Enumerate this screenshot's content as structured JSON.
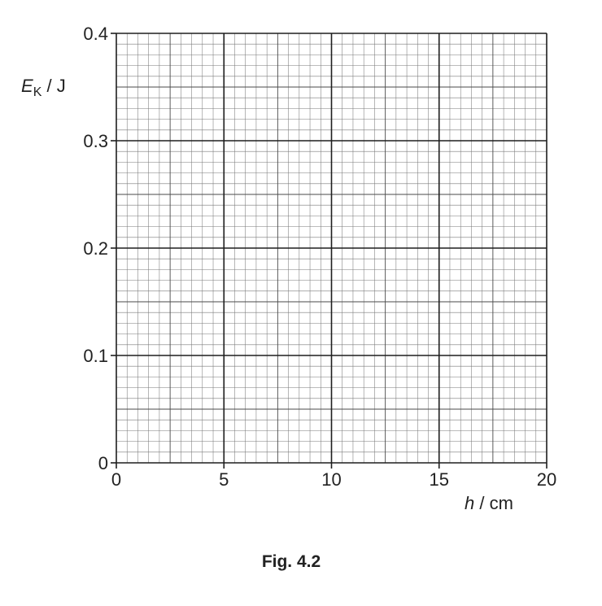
{
  "figure": {
    "caption": "Fig. 4.2"
  },
  "chart_data": {
    "type": "scatter",
    "title": "",
    "x_axis": {
      "symbol": "h",
      "unit": "cm",
      "range": [
        0,
        20
      ],
      "ticks": [
        "0",
        "5",
        "10",
        "15",
        "20"
      ]
    },
    "y_axis": {
      "symbol": "E",
      "subscript": "K",
      "unit": "J",
      "range": [
        0,
        0.4
      ],
      "ticks": [
        "0",
        "0.1",
        "0.2",
        "0.3",
        "0.4"
      ]
    },
    "grid": true,
    "series": []
  }
}
